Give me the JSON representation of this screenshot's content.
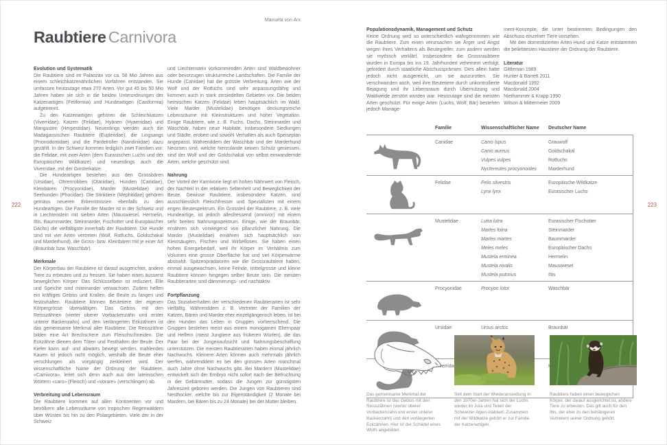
{
  "header": {
    "author": "Manuela von Arx",
    "title_bold": "Raubtiere",
    "title_light": "Carnivora",
    "left_page_number": "222",
    "right_page_number": "223"
  },
  "colors": {
    "accent_red": "#b5513a",
    "body_text": "#6a6a6d",
    "heading_text": "#46464a",
    "table_line": "#9a9a9a",
    "silhouette_gray": "#8c8c8c"
  },
  "left_page": {
    "column1": [
      {
        "heading": "Evolution und Systematik",
        "first": true
      },
      {
        "text": "Die Raubtiere sind im Paläozän vor ca. 58 Mio Jahren aus einem schleichkatzenähnlichen Vorfahren entstanden. Sie umfassen heutzutage etwa 270 Arten. Vor gut 45 bis 50 Mio Jahren haben sie sich in die beiden Unterordnungen der Katzenartigen (Feliformia) und Hundeartigen (Caniformia) aufgetrennt."
      },
      {
        "text": "Zu den Katzenartigen gehören die Schleichkatzen (Viverridae), Katzen (Felidae), Hyänen (Hyaenidae) und Mangusten (Herpestidae). Neuerdings werden auch die Madagassischen Raubtiere (Eupleridae), die Lingsangs (Prionodontidae) und die Pardelroller (Nandiniidae) dazu gezählt. In der Schweiz kommen lediglich zwei Familien vor: die Felidae, mit zwei Arten (dem Eurasischen Luchs und der Europäischen Wildkatze) und neuerdings auch die Viverridae, mit der Ginsterkatze.",
        "indent": true
      },
      {
        "text": "Die Hundeartigen bestehen aus den Grossbären (Ursidae), Ohrenrobben (Otariidae), Hunden (Canidae), Kleinbären (Procyonidae), Marder (Mustelidae) und Seehunden (Phocidae). Die Stinktiere (Mephitidae) gehören gemäss neueren Erkenntnissen ebenfalls zu den Hundeartigen. Die Familie der Marder ist in der Schweiz und in Liechtenstein mit sieben Arten (Mauswiesel, Hermelin, Iltis, Baummarder, Steinmarder, Fischotter und Europäischer Dachs) die vielfältigste innerhalb der Raubtiere. Die Hunde sind mit vier Arten vertreten (Wolf, Rotfuchs, Goldschakal und Marderhund), die Gross- bzw. Kleinbären mit je einer Art (Braunbär bzw. Waschbär).",
        "indent": true
      },
      {
        "heading": "Merkmale"
      },
      {
        "text": "Der Körperbau der Raubtiere ist darauf ausgerichtet, andere Tiere zu erbeuten und zu fressen. Sie haben einen äusserst beweglichen Körper: Das Schlüsselbein ist reduziert, Elle und Speiche sind miteinander verwachsen. Zudem helfen ein kräftiges Gebiss und Krallen, die Beute zu fangen und festzuhalten. Raubtiere können Beutetiere der eigenen Körpergrösse überwältigen. Das Gebiss mit den Reisszähnen (vierter oberer Vorbackenzahn und erster unterer Backenzahn) und den verlängerten Eckzähnen ist das gemeinsame Merkmal aller Raubtiere. Die Reisszähne bilden eine Art Brechschere zum Fleischschneiden. Die Eckzähne dienen dem Töten und Festhalten der Beute. Der Kiefer kann auf- und abwärts bewegt werden, mahlendes Kauen ist jedoch nicht möglich, weshalb die Beute eher verschlungen als vorgängig zerkleinert wird. Der wissenschaftliche Name der Ordnung der Raubtiere, «Carnivora», leitet sich denn auch aus den lateinischen Wörtern «caro» (Fleisch) und «vorare» (verschlingen) ab."
      },
      {
        "heading": "Verbreitung und Lebensraum"
      },
      {
        "text": "Die Raubtiere kommen auf allen Kontinenten vor und bevölkern alle Lebensräume von tropischen Regenwäldern über Wüsten bis hin zu den Polargebieten. Viele der in der Schweiz"
      }
    ],
    "column2": [
      {
        "text": "und Liechtenstein vorkommenden Arten sind Waldbewohner oder bevorzugen strukturreiche Landschaften. Die Familie der Hunde (Canidae) hat die grösste Verbreitung. Arten wie der Wolf und der Rotfuchs sind sehr anpassungsfähig und kommen auch in stark zersiedelten Gebieten vor. Die beiden heimischen Katzen (Felidae) leben hauptsächlich im Wald. Viele Marder (Mustelidae) benötigen deckungsreiche Lebensräume mit Kleinstrukturen und hoher Vegetation. Einige Raubtiere, wie z. B. Fuchs, Dachs, Steinmarder und Waschbär, haben neue Habitate, insbesondere Siedlungen und Städte, erobert und sowohl Verhalten als auch Speiseplan angepasst. Währenddem der Waschbär und der Marderhund Neozoen sind, welche hierzulande keinen Schutz geniessen, sind der Wolf und der Goldschakal von selbst einwandernde Arten, welche geschützt sind."
      },
      {
        "heading": "Nahrung"
      },
      {
        "text": "Der Vorteil der Karnivorie liegt im hohen Nährwert von Fleisch, der Nachteil in der relativen Seltenheit und Beweglichkeit der Beute. Gewisse Raubtiere, insbesondere Katzen, sind ausschliesslich Fleischfresser und Spezialisten mit einem engen Beutespektrum. Ein Grossteil der Raubtiere, z. B. viele Hundeartige, ist jedoch allesfressend (omnivor) mit einem sehr breiten Nahrungsspektrum. Einige, wie der Braunbär, ernähren sich vorwiegend von pflanzlicher Nahrung. Die Marder (Mustelidae) ernähren sich hauptsächlich von Kleinsäugern, Fischen und Wirbellosen. Sie haben einen hohen Energiebedarf, weil ihr Körper im Verhältnis zum Volumen eine grosse Oberfläche hat und viel Körperwärme abstrahlt. Spitzenprädatoren wie die Grossraubtiere haben, einmal ausgewachsen, keine Feinde, mittelgrosse und kleine Raubtiere können hingegen selber Beute sein. Die meisten Raubtierarten sind dämmerungs- und nachtaktiv."
      },
      {
        "heading": "Fortpflanzung"
      },
      {
        "text": "Das Sozialverhalten der verschiedenen Raubtierarten ist sehr vielfältig. Währenddem z. B. Vertreter der Familien der Katzen, Bären und Marder eher einzelgängerisch leben, ist bei den Hunden das Leben in Gruppen vorherrschend. Die Gruppen bestehen meist aus einem monogamen Elternpaar und Helfern (meist Jungtiere aus früheren Würfen), die das Paar bei der Jungenaufzucht und Nahrungsbeschaffung unterstützen. Die meisten Raubtierarten haben einmal jährlich Nachwuchs. Kleinere Arten können auch mehrmals jährlich werfen, währenddem es bei den grossen Arten manchmal auch Jahre ohne Nachwuchs gibt. Bei Mardern (Mustelidae) entwickelt sich der Embryo nicht sofort nach der Befruchtung in der Gebärmutter, sodass die Jungen zur günstigsten Jahreszeit geboren werden. Die Jungen von Raubtieren sind Nesthocker, welche bis zur Eigenständigkeit (2 Monate bei Mardern, bei Bären bis zu 24 Monate) bei der Mutter bleiben."
      }
    ]
  },
  "right_page": {
    "column1": [
      {
        "heading": "Populationsdynamik, Management und Schutz",
        "first": true
      },
      {
        "text": "Keine Ordnung wird so unterschiedlich wahrgenommen wie die Raubtiere. Zum einen verursachen sie Ärger und Angst wegen ihres Verhaltens als Beutegreifer, zum andern werden sie mythisch verklärt. Insbesondere die Grossraubtiere wurden in Europa bis ins 19. Jahrhundert vehement verfolgt, gefordert durch staatliche Abschussprämien. Dies allein hatte jedoch nicht ausgereicht, um sie auszurotten. Sie verschwanden auch, weil ihre Beutetiere durch unkontrollierte Bejagung und ihr Lebensraum durch Übernutzung und Waldweide zerstört worden war. Heutzutage sind die meisten Arten geschützt. Für einige Arten (Luchs, Wolf, Bär) bestehen jedoch Manage-"
      }
    ],
    "column2": [
      {
        "text": "ment-Konzepte, die unter bestimmten Bedingungen den Abschuss einzelner Tiere vorsehen."
      },
      {
        "text": "Mit den domestizierten Arten Hund und Katze entstammen die beliebtesten Haustiere der Ordnung der Raubtiere.",
        "indent": true
      },
      {
        "heading": "Literatur"
      },
      {
        "lines": [
          "Gittleman 1989",
          "Hunter & Barrett 2011",
          "Macdonald 1992",
          "Macdonald 2004",
          "Niethammer & Krapp 1990",
          "Wilson & Mittermeier 2009"
        ]
      }
    ]
  },
  "table": {
    "headers": [
      "Familie",
      "Wissenschaftlicher Name",
      "Deutscher Name"
    ],
    "groups": [
      {
        "icon": "wolf-silhouette",
        "familie": "Canidae",
        "rows": [
          [
            "Canis lupus",
            "Grauwolf"
          ],
          [
            "Canis aureus",
            "Goldschakal"
          ],
          [
            "Vulpes vulpes",
            "Rotfuchs"
          ],
          [
            "Nyctereutes procyonoides",
            "Marderhund"
          ]
        ]
      },
      {
        "icon": "cat-silhouette",
        "familie": "Felidae",
        "rows": [
          [
            "Felis silvestris",
            "Europäische Wildkatze"
          ],
          [
            "Lynx lynx",
            "Eurasischer Luchs"
          ]
        ]
      },
      {
        "icon": "marten-silhouette",
        "familie": "Mustelidae",
        "rows": [
          [
            "Lutra lutra",
            "Eurasischer Fischotter"
          ],
          [
            "Martes foina",
            "Steinmarder"
          ],
          [
            "Martes martes",
            "Baummarder"
          ],
          [
            "Meles meles",
            "Europäischer Dachs"
          ],
          [
            "Mustela erminea",
            "Hermelin"
          ],
          [
            "Mustela nivalis",
            "Mauswiesel"
          ],
          [
            "Mustela putorius",
            "Iltis"
          ]
        ]
      },
      {
        "icon": "raccoon-silhouette",
        "familie": "Procyonidae",
        "rows": [
          [
            "Procyon lotor",
            "Waschbär"
          ]
        ]
      },
      {
        "icon": "bear-silhouette",
        "familie": "Ursidae",
        "rows": [
          [
            "Ursus arctos",
            "Braunbär"
          ]
        ]
      },
      {
        "icon": "genet-silhouette",
        "familie": "Viverridae",
        "rows": [
          [
            "Genetta genetta",
            "Kleinfleck-Ginsterkatze"
          ]
        ]
      }
    ]
  },
  "figures": [
    {
      "name": "wolf-skull-illustration",
      "caption": "Das gemeinsame Merkmal der Raubtiere ist das Gebiss mit den Reisszähnen (vierter oberer Vorbackenzahn und erster unterer Backenzahn) und den verlängerten Eckzähnen. Hier ist der Schädel eines Wolfs abgebildet."
    },
    {
      "name": "lynx-photo",
      "caption": "Seit dem Start der Wiederansiedlung in den 1970er-Jahren hat sich der Luchs wieder im Jura und Teilen der Schweizer Alpen etabliert. Zusammen mit der Wildkatze gehört er zur Familie der Katzenartigen."
    },
    {
      "name": "iltis-photo",
      "caption": "Raubtiere haben einen beweglichen Körper, der darauf ausgerichtet ist, andere Tiere zu erbeuten. Das gilt auch für den Iltis, der eher zu den behäbigeren Vertretern seiner Ordnung gehört."
    }
  ]
}
